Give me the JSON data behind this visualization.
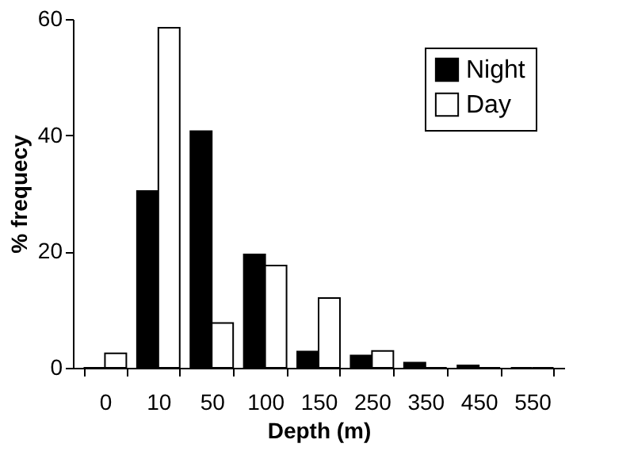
{
  "chart_data": {
    "type": "bar",
    "xlabel": "Depth (m)",
    "ylabel": "% frequecy",
    "categories": [
      "0",
      "10",
      "50",
      "100",
      "150",
      "250",
      "350",
      "450",
      "550"
    ],
    "series": [
      {
        "name": "Night",
        "color": "#000000",
        "values": [
          0,
          30.4,
          40.7,
          19.5,
          2.8,
          2.1,
          0.9,
          0.4,
          0
        ]
      },
      {
        "name": "Day",
        "color": "#ffffff",
        "values": [
          2.5,
          58.5,
          7.7,
          17.6,
          12,
          2.9,
          0,
          0,
          0
        ]
      }
    ],
    "ylim": [
      0,
      60
    ],
    "yticks": [
      0,
      20,
      40,
      60
    ],
    "grid": false,
    "legend": "top right"
  }
}
